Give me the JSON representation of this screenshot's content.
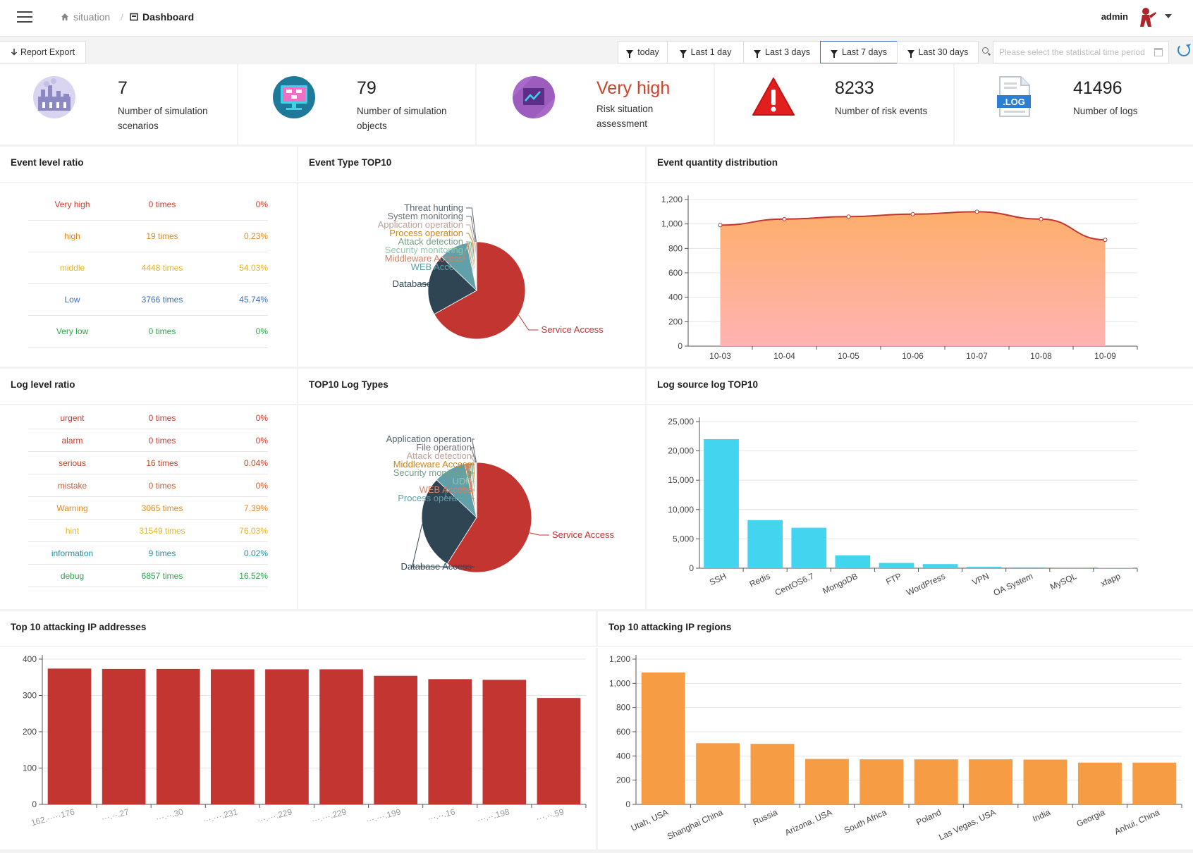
{
  "header": {
    "breadcrumb_home": "situation",
    "breadcrumb_separator": "/",
    "breadcrumb_current": "Dashboard",
    "user": "admin"
  },
  "toolbar": {
    "export_label": "Report Export",
    "ranges": [
      "today",
      "Last 1 day",
      "Last 3 days",
      "Last 7 days",
      "Last 30 days"
    ],
    "active_range": "Last 7 days",
    "date_placeholder": "Please select the statistical time period"
  },
  "stats": [
    {
      "value": "7",
      "label1": "Number of simulation",
      "label2": "scenarios",
      "icon": "factory-icon"
    },
    {
      "value": "79",
      "label1": "Number of simulation",
      "label2": "objects",
      "icon": "monitor-icon"
    },
    {
      "value": "Very high",
      "label1": "Risk situation",
      "label2": "assessment",
      "icon": "trend-icon",
      "color": "#c9442c"
    },
    {
      "value": "8233",
      "label1": "Number of risk events",
      "label2": "",
      "icon": "warning-icon"
    },
    {
      "value": "41496",
      "label1": "Number of logs",
      "label2": "",
      "icon": "log-file-icon"
    }
  ],
  "event_level": {
    "title": "Event level ratio",
    "rows": [
      {
        "name": "Very high",
        "times": "0 times",
        "pct": "0%",
        "color": "#d0392b"
      },
      {
        "name": "high",
        "times": "19 times",
        "pct": "0.23%",
        "color": "#e8871e"
      },
      {
        "name": "middle",
        "times": "4448 times",
        "pct": "54.03%",
        "color": "#e6b523"
      },
      {
        "name": "Low",
        "times": "3766 times",
        "pct": "45.74%",
        "color": "#3a6fb8"
      },
      {
        "name": "Very low",
        "times": "0 times",
        "pct": "0%",
        "color": "#2aa748"
      }
    ]
  },
  "log_level": {
    "title": "Log level ratio",
    "rows": [
      {
        "name": "urgent",
        "times": "0 times",
        "pct": "0%",
        "color": "#d0392b"
      },
      {
        "name": "alarm",
        "times": "0 times",
        "pct": "0%",
        "color": "#d0392b"
      },
      {
        "name": "serious",
        "times": "16 times",
        "pct": "0.04%",
        "color": "#c2401f"
      },
      {
        "name": "mistake",
        "times": "0 times",
        "pct": "0%",
        "color": "#d05a2b"
      },
      {
        "name": "Warning",
        "times": "3065 times",
        "pct": "7.39%",
        "color": "#e8871e"
      },
      {
        "name": "hint",
        "times": "31549 times",
        "pct": "76.03%",
        "color": "#e6b523"
      },
      {
        "name": "information",
        "times": "9 times",
        "pct": "0.02%",
        "color": "#1f8fa0"
      },
      {
        "name": "debug",
        "times": "6857 times",
        "pct": "16.52%",
        "color": "#2aa748"
      }
    ]
  },
  "chart_data": [
    {
      "id": "event_type_top10",
      "type": "pie",
      "title": "Event Type TOP10",
      "slices": [
        {
          "label": "Service Access",
          "value": 66,
          "color": "#c23531",
          "label_color": "#c23531"
        },
        {
          "label": "Database Access",
          "value": 20,
          "color": "#2f4554",
          "label_color": "#2f4554"
        },
        {
          "label": "WEB Access",
          "value": 9.5,
          "color": "#61a0a8",
          "label_color": "#61a0a8"
        },
        {
          "label": "Middleware Access",
          "value": 0.6,
          "color": "#d48265",
          "label_color": "#d48265"
        },
        {
          "label": "Security monitoring",
          "value": 0.6,
          "color": "#91c7ae",
          "label_color": "#91c7ae"
        },
        {
          "label": "Attack detection",
          "value": 0.5,
          "color": "#749f83",
          "label_color": "#749f83"
        },
        {
          "label": "Process operation",
          "value": 0.5,
          "color": "#ca8622",
          "label_color": "#ca8622"
        },
        {
          "label": "Application operation",
          "value": 0.4,
          "color": "#bda29a",
          "label_color": "#bda29a"
        },
        {
          "label": "System monitoring",
          "value": 0.3,
          "color": "#6e7074",
          "label_color": "#6e7074"
        },
        {
          "label": "Threat hunting",
          "value": 0.3,
          "color": "#546570",
          "label_color": "#546570"
        }
      ]
    },
    {
      "id": "event_quantity",
      "type": "area",
      "title": "Event quantity distribution",
      "categories": [
        "10-03",
        "10-04",
        "10-05",
        "10-06",
        "10-07",
        "10-08",
        "10-09"
      ],
      "values": [
        990,
        1040,
        1060,
        1080,
        1100,
        1040,
        870
      ],
      "ylim": [
        0,
        1200
      ],
      "yticks": [
        "0",
        "200",
        "400",
        "600",
        "800",
        "1,000",
        "1,200"
      ],
      "grid": true
    },
    {
      "id": "top10_log_types",
      "type": "pie",
      "title": "TOP10 Log Types",
      "slices": [
        {
          "label": "Service Access",
          "value": 59,
          "color": "#c23531",
          "label_color": "#c23531"
        },
        {
          "label": "Database Access",
          "value": 28,
          "color": "#2f4554",
          "label_color": "#2f4554"
        },
        {
          "label": "Process operation",
          "value": 9.5,
          "color": "#61a0a8",
          "label_color": "#61a0a8"
        },
        {
          "label": "WEB Access",
          "value": 1.4,
          "color": "#d48265",
          "label_color": "#d48265"
        },
        {
          "label": "UDP",
          "value": 0.5,
          "color": "#91c7ae",
          "label_color": "#91c7ae"
        },
        {
          "label": "Security monitoring",
          "value": 0.5,
          "color": "#749f83",
          "label_color": "#749f83"
        },
        {
          "label": "Middleware Access",
          "value": 0.4,
          "color": "#ca8622",
          "label_color": "#ca8622"
        },
        {
          "label": "Attack detection",
          "value": 0.3,
          "color": "#bda29a",
          "label_color": "#bda29a"
        },
        {
          "label": "File operation",
          "value": 0.2,
          "color": "#6e7074",
          "label_color": "#6e7074"
        },
        {
          "label": "Application operation",
          "value": 0.2,
          "color": "#546570",
          "label_color": "#546570"
        }
      ]
    },
    {
      "id": "log_source_top10",
      "type": "bar",
      "title": "Log source log TOP10",
      "categories": [
        "SSH",
        "Redis",
        "CentOS6.7",
        "MongoDB",
        "FTP",
        "WordPress",
        "VPN",
        "OA System",
        "MySQL",
        "xfapp"
      ],
      "values": [
        22000,
        8200,
        6900,
        2200,
        900,
        700,
        250,
        150,
        100,
        60
      ],
      "ylim": [
        0,
        25000
      ],
      "yticks": [
        "0",
        "5,000",
        "10,000",
        "15,000",
        "20,000",
        "25,000"
      ],
      "color": "#43d4ef",
      "grid": true
    },
    {
      "id": "top10_attacking_ips",
      "type": "bar",
      "title": "Top 10 attacking IP addresses",
      "categories": [
        "162.·····176",
        "···.··.27",
        "···.··.30",
        "···.···.231",
        "···.···.229",
        "···.···.229",
        "···.···.199",
        "···.··.16",
        "···.··.198",
        "···.··.59"
      ],
      "values": [
        374,
        373,
        373,
        372,
        372,
        372,
        354,
        345,
        343,
        293
      ],
      "ylim": [
        0,
        400
      ],
      "yticks": [
        "0",
        "100",
        "200",
        "300",
        "400"
      ],
      "color": "#c23531",
      "grid": true
    },
    {
      "id": "top10_attacking_regions",
      "type": "bar",
      "title": "Top 10 attacking IP regions",
      "categories": [
        "Utah, USA",
        "Shanghai China",
        "Russia",
        "Arizona, USA",
        "South Africa",
        "Poland",
        "Las Vegas, USA",
        "India",
        "Georgia",
        "Anhui, China"
      ],
      "values": [
        1090,
        505,
        500,
        375,
        372,
        372,
        372,
        370,
        345,
        345
      ],
      "ylim": [
        0,
        1200
      ],
      "yticks": [
        "0",
        "200",
        "400",
        "600",
        "800",
        "1,000",
        "1,200"
      ],
      "color": "#f59c45",
      "grid": true
    }
  ]
}
